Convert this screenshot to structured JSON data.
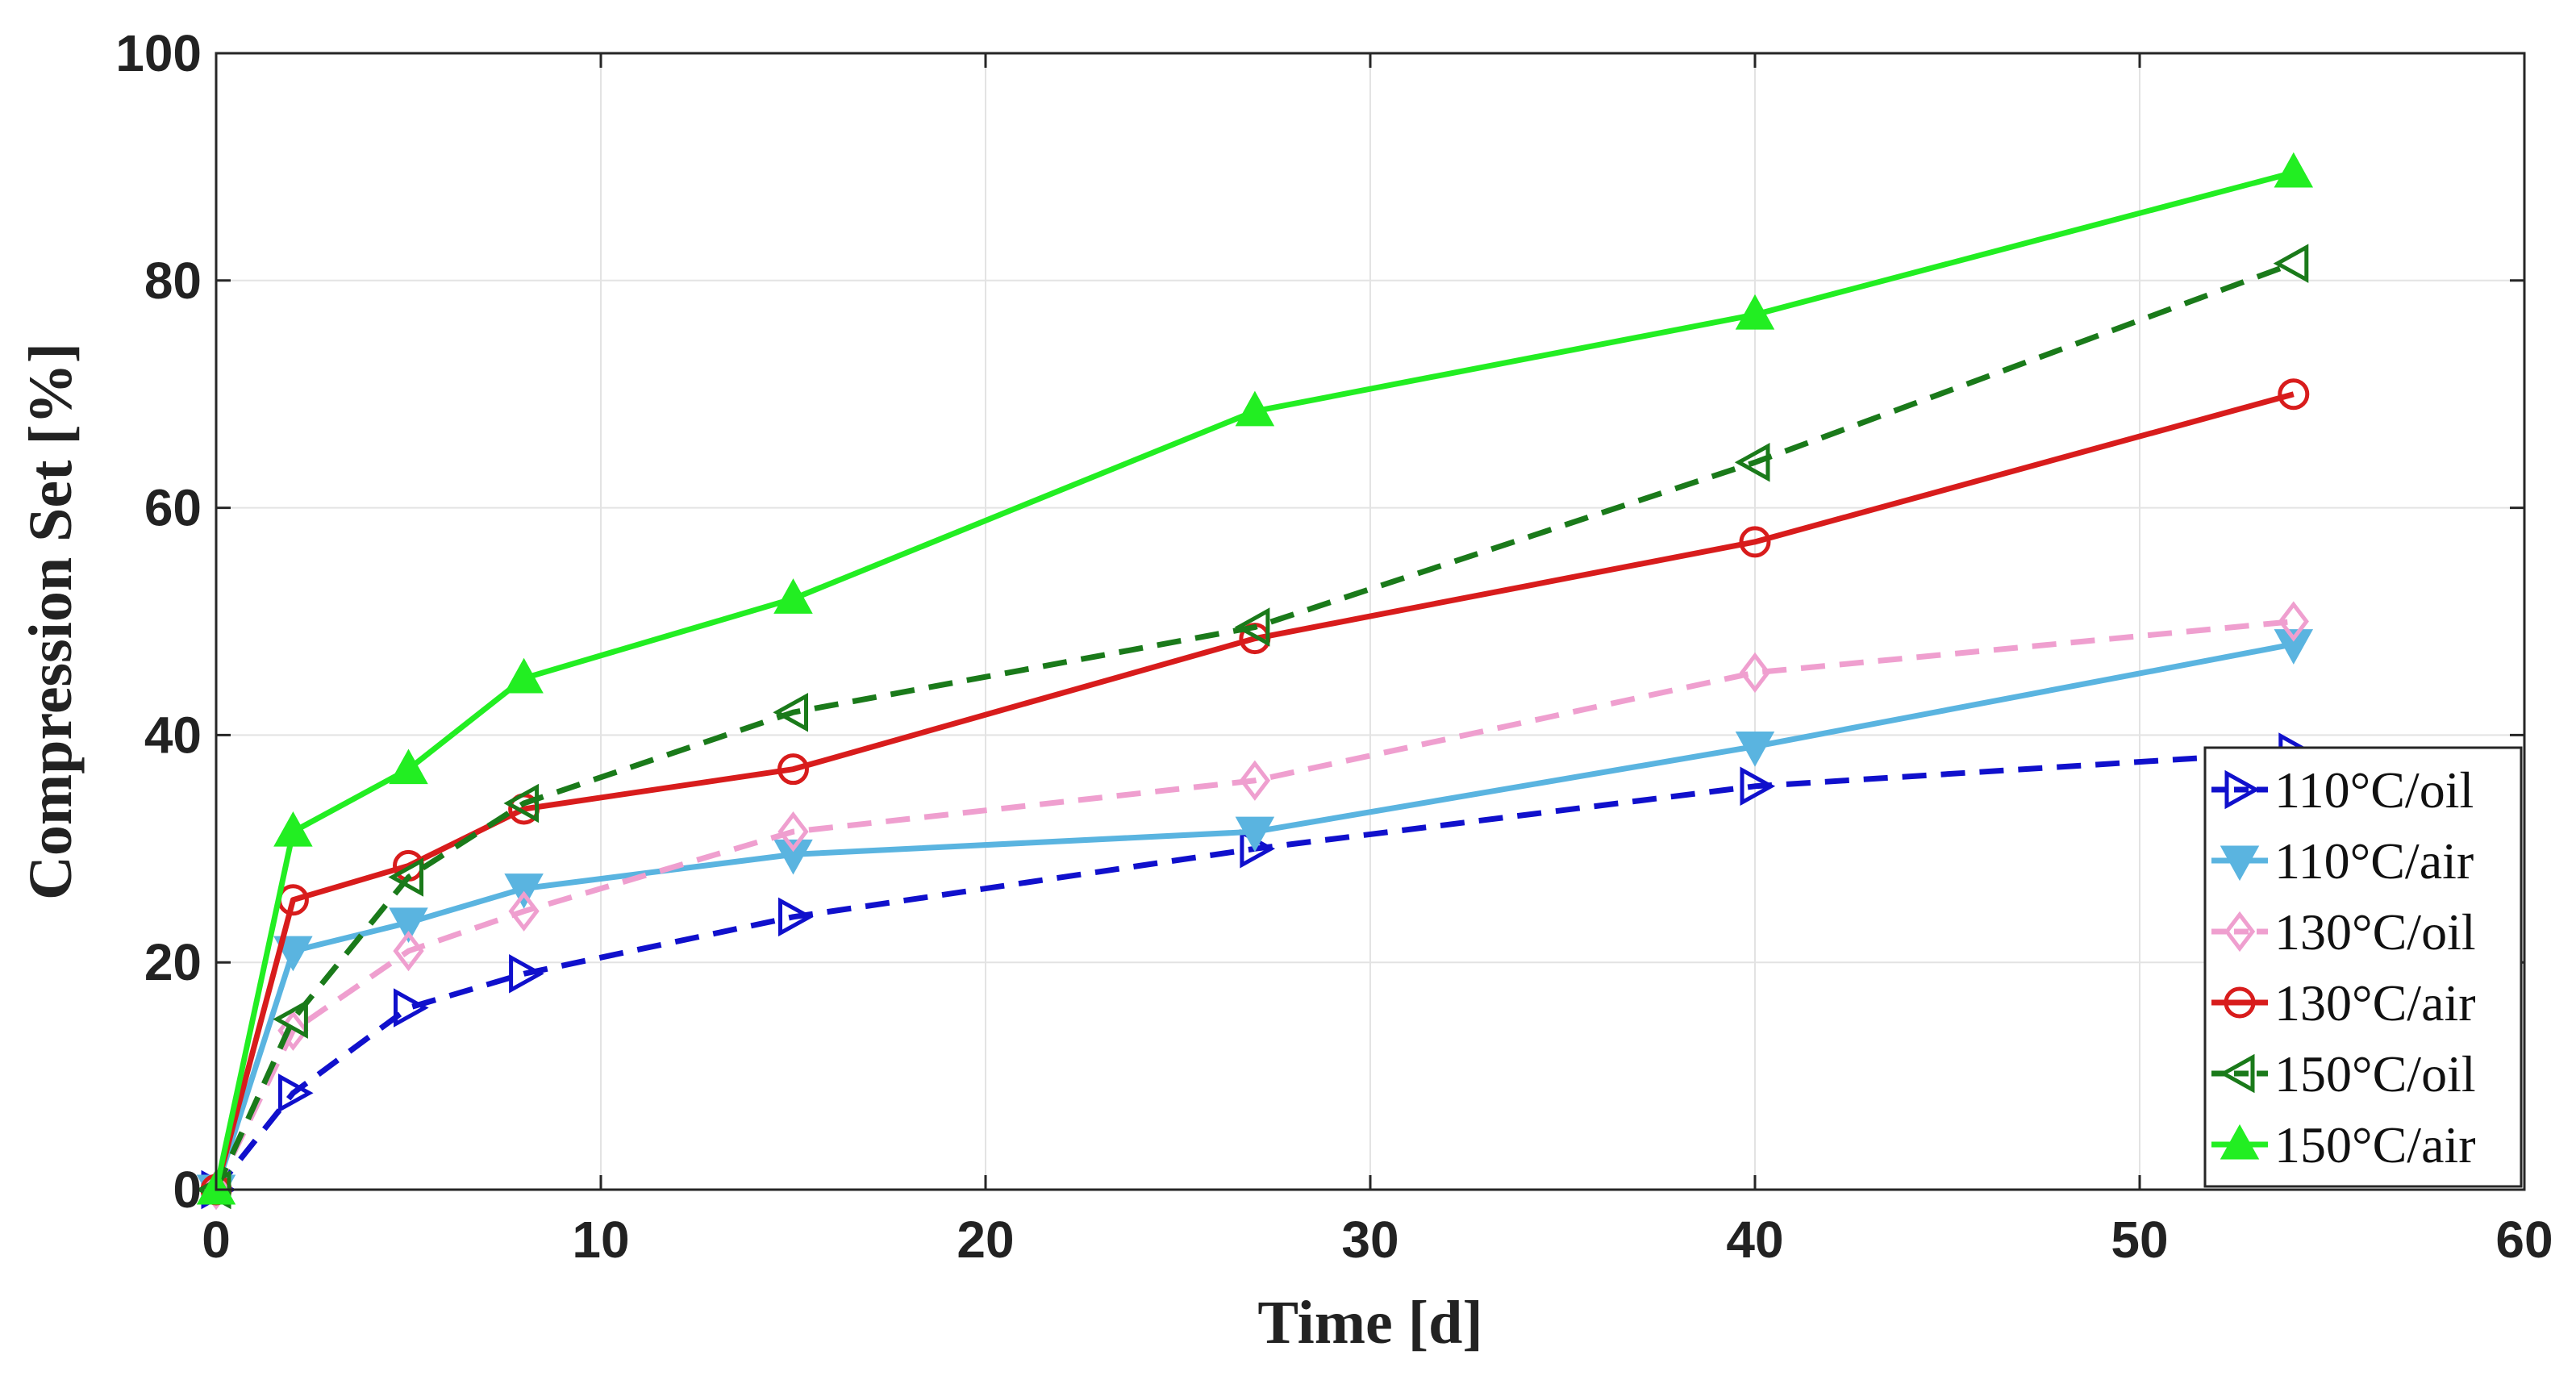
{
  "chart_data": {
    "type": "line",
    "title": "",
    "xlabel": "Time [d]",
    "ylabel": "Compression Set [%]",
    "xlim": [
      0,
      60
    ],
    "ylim": [
      0,
      100
    ],
    "xticks": [
      0,
      10,
      20,
      30,
      40,
      50,
      60
    ],
    "yticks": [
      0,
      20,
      40,
      60,
      80,
      100
    ],
    "grid": true,
    "legend_position": "bottom-right",
    "x": [
      0,
      2,
      5,
      8,
      15,
      27,
      40,
      54
    ],
    "series": [
      {
        "name": "110°C/oil",
        "color": "#1010cc",
        "dash": "dashed",
        "marker": "triangle-right",
        "values": [
          0,
          8.5,
          16,
          19,
          24,
          30,
          35.5,
          38.5
        ]
      },
      {
        "name": "110°C/air",
        "color": "#5ab4e0",
        "dash": "solid",
        "marker": "triangle-down",
        "values": [
          0,
          21,
          23.5,
          26.5,
          29.5,
          31.5,
          39,
          48
        ]
      },
      {
        "name": "130°C/oil",
        "color": "#ef9fcf",
        "dash": "dashed",
        "marker": "diamond",
        "values": [
          0,
          14,
          21,
          24.5,
          31.5,
          36,
          45.5,
          50
        ]
      },
      {
        "name": "130°C/air",
        "color": "#d81c1c",
        "dash": "solid",
        "marker": "circle",
        "values": [
          0,
          25.5,
          28.5,
          33.5,
          37,
          48.5,
          57,
          70
        ]
      },
      {
        "name": "150°C/oil",
        "color": "#1a7a1a",
        "dash": "dashed",
        "marker": "triangle-left",
        "values": [
          0,
          15,
          27.5,
          34,
          42,
          49.5,
          64,
          81.5
        ]
      },
      {
        "name": "150°C/air",
        "color": "#22ee22",
        "dash": "solid",
        "marker": "triangle-up",
        "values": [
          0,
          31.5,
          37,
          45,
          52,
          68.5,
          77,
          89.5
        ]
      }
    ]
  }
}
